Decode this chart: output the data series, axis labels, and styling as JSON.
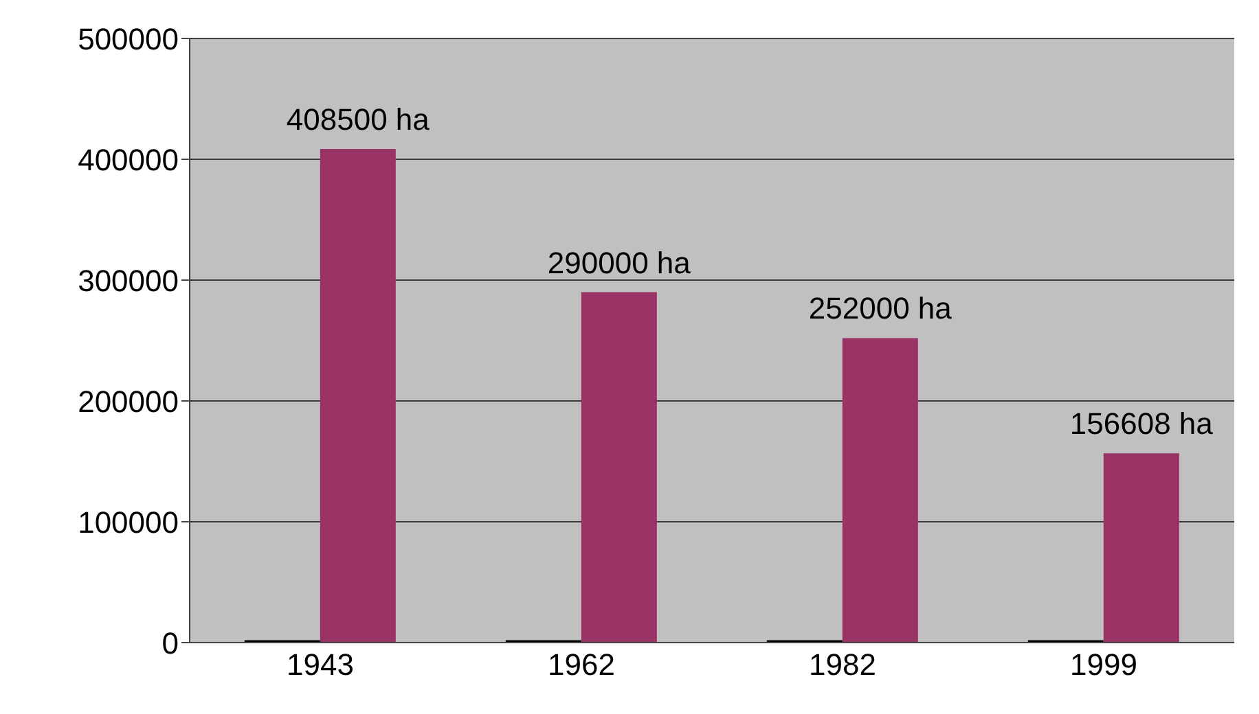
{
  "chart_data": {
    "type": "bar",
    "categories": [
      "1943",
      "1962",
      "1982",
      "1999"
    ],
    "series": [
      {
        "color": "#000000",
        "values": [
          2000,
          2000,
          2000,
          2000
        ]
      },
      {
        "color": "#993366",
        "values": [
          408500,
          290000,
          252000,
          156608
        ],
        "value_labels": [
          "408500 ha",
          "290000 ha",
          "252000 ha",
          "156608 ha"
        ]
      }
    ],
    "ylim": [
      0,
      500000
    ],
    "yticks": [
      0,
      100000,
      200000,
      300000,
      400000,
      500000
    ],
    "grid": "y",
    "legend": false
  }
}
